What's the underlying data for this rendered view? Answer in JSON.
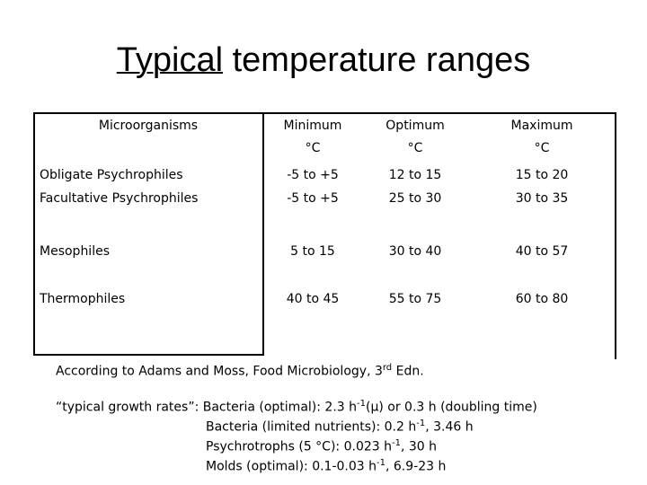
{
  "title": {
    "emphasis": "Typical",
    "rest": "temperature ranges"
  },
  "table": {
    "header": [
      [
        "Microorganisms"
      ],
      [
        "Minimum",
        "°C"
      ],
      [
        "Optimum",
        "°C"
      ],
      [
        "Maximum",
        "°C"
      ]
    ],
    "rows": [
      [
        [
          "Obligate Psychrophiles",
          "Facultative Psychrophiles"
        ],
        [
          "-5 to +5",
          "-5 to +5"
        ],
        [
          "12 to 15",
          "25 to 30"
        ],
        [
          "15 to 20",
          "30 to 35"
        ]
      ],
      [
        [
          "Mesophiles"
        ],
        [
          "5 to 15"
        ],
        [
          "30 to 40"
        ],
        [
          "40 to 57"
        ]
      ],
      [
        [
          "Thermophiles"
        ],
        [
          "40 to 45"
        ],
        [
          "55 to 75"
        ],
        [
          "60 to 80"
        ]
      ]
    ]
  },
  "source": [
    {
      "text": "According to Adams and Moss, Food Microbiology, 3",
      "superscript": false
    },
    {
      "text": "rd",
      "superscript": true
    },
    {
      "text": " Edn.",
      "superscript": false
    }
  ],
  "notes": [
    [
      {
        "text": "“typical growth rates”: Bacteria (optimal): 2.3 h",
        "superscript": false
      },
      {
        "text": "-1",
        "superscript": true
      },
      {
        "text": "(μ) or 0.3 h (doubling time)",
        "superscript": false
      }
    ],
    [
      {
        "text": "Bacteria (limited nutrients): 0.2 h",
        "superscript": false
      },
      {
        "text": "-1",
        "superscript": true
      },
      {
        "text": ", 3.46 h",
        "superscript": false
      }
    ],
    [
      {
        "text": "Psychrotrophs (5 °C): 0.023 h",
        "superscript": false
      },
      {
        "text": "-1",
        "superscript": true
      },
      {
        "text": ", 30 h",
        "superscript": false
      }
    ],
    [
      {
        "text": "Molds (optimal): 0.1-0.03 h",
        "superscript": false
      },
      {
        "text": "-1",
        "superscript": true
      },
      {
        "text": ", 6.9-23 h",
        "superscript": false
      }
    ]
  ]
}
